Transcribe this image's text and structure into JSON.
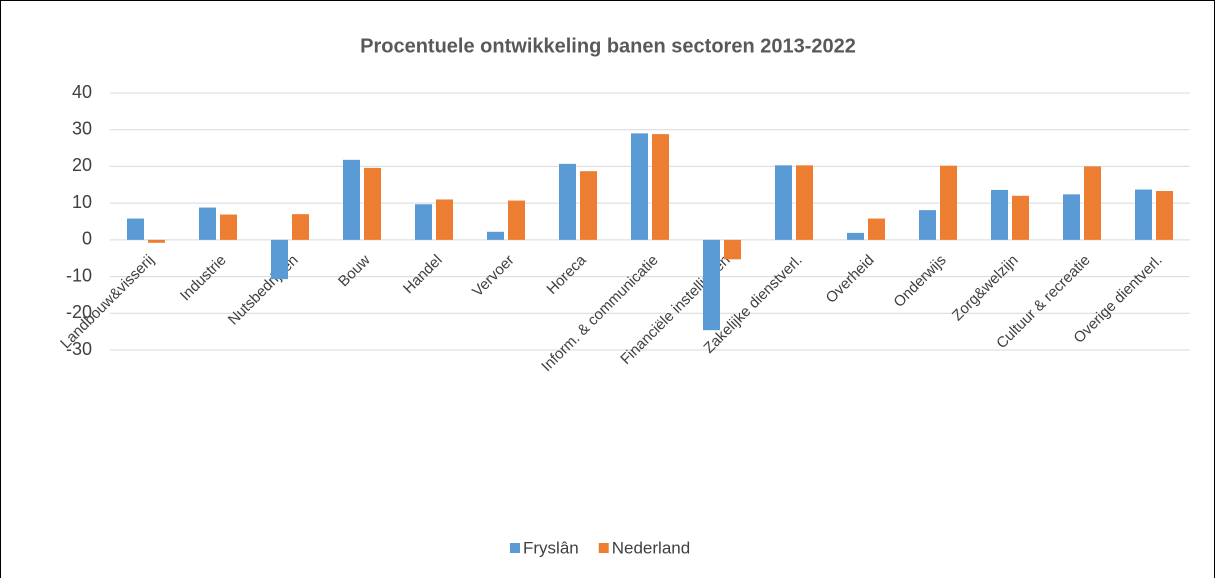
{
  "chart_data": {
    "type": "bar",
    "title": "Procentuele ontwikkeling banen sectoren 2013-2022",
    "categories": [
      "Landbouw&visserij",
      "Industrie",
      "Nutsbedrijven",
      "Bouw",
      "Handel",
      "Vervoer",
      "Horeca",
      "Inform. & communicatie",
      "Financiële instellingen",
      "Zakelijke dienstverl.",
      "Overheid",
      "Onderwijs",
      "Zorg&welzijn",
      "Cultuur & recreatie",
      "Overige dientverl."
    ],
    "series": [
      {
        "name": "Fryslân",
        "color": "#5b9bd5",
        "values": [
          5.8,
          8.8,
          -10.7,
          21.8,
          9.7,
          2.2,
          20.7,
          29.0,
          -24.6,
          20.3,
          1.9,
          8.1,
          13.6,
          12.4,
          13.7
        ]
      },
      {
        "name": "Nederland",
        "color": "#ed7d31",
        "values": [
          -0.8,
          6.9,
          7.0,
          19.6,
          11.0,
          10.7,
          18.7,
          28.8,
          -5.3,
          20.3,
          5.8,
          20.2,
          12.0,
          20.0,
          13.3
        ]
      }
    ],
    "ylim": [
      -30,
      40
    ],
    "yticks": [
      -30,
      -20,
      -10,
      0,
      10,
      20,
      30,
      40
    ],
    "grid": true,
    "legend": "bottom"
  }
}
